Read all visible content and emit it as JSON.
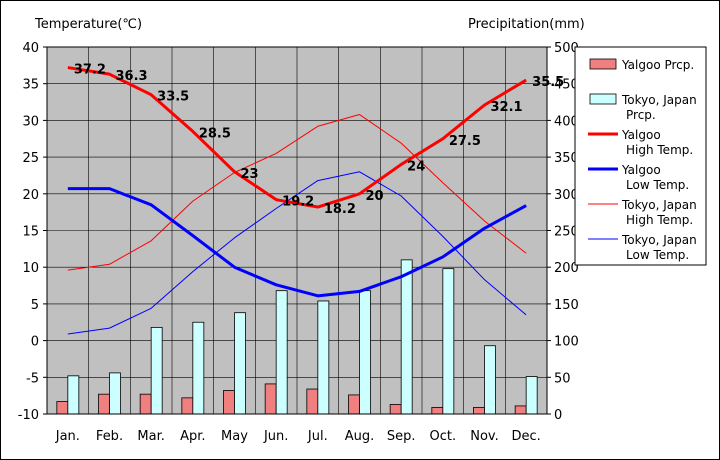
{
  "chart_data": {
    "type": "bar+line",
    "ylabel_left": "Temperature(℃)",
    "ylabel_right": "Precipitation(mm)",
    "categories": [
      "Jan.",
      "Feb.",
      "Mar.",
      "Apr.",
      "May",
      "Jun.",
      "Jul.",
      "Aug.",
      "Sep.",
      "Oct.",
      "Nov.",
      "Dec."
    ],
    "ylim_left": [
      -10,
      40
    ],
    "yticks_left": [
      40,
      35,
      30,
      25,
      20,
      15,
      10,
      5,
      0,
      -5,
      -10
    ],
    "ylim_right": [
      0,
      500
    ],
    "yticks_right": [
      500,
      450,
      400,
      350,
      300,
      250,
      200,
      150,
      100,
      50,
      0
    ],
    "grid": true,
    "plot_background": "#c0c0c0",
    "legend_position": "right",
    "bar_series": [
      {
        "name": "Yalgoo Prcp.",
        "color": "#f08080",
        "values": [
          17,
          27,
          27,
          22,
          32,
          41,
          34,
          26,
          13,
          9,
          9,
          11
        ]
      },
      {
        "name": "Tokyo, Japan Prcp.",
        "color": "#ccffff",
        "values": [
          52,
          56,
          118,
          125,
          138,
          168,
          154,
          168,
          210,
          198,
          93,
          51
        ]
      }
    ],
    "line_series": [
      {
        "name": "Yalgoo High Temp.",
        "color": "#ff0000",
        "width": 3,
        "values": [
          37.2,
          36.3,
          33.5,
          28.5,
          23,
          19.2,
          18.2,
          20,
          24,
          27.5,
          32.1,
          35.5
        ],
        "labels": [
          "37.2",
          "36.3",
          "33.5",
          "28.5",
          "23",
          "19.2",
          "18.2",
          "20",
          "24",
          "27.5",
          "32.1",
          "35.5"
        ]
      },
      {
        "name": "Yalgoo Low Temp.",
        "color": "#0000ff",
        "width": 3,
        "values": [
          20.7,
          20.7,
          18.5,
          14.3,
          10,
          7.6,
          6.1,
          6.7,
          8.7,
          11.4,
          15.3,
          18.4
        ]
      },
      {
        "name": "Tokyo, Japan High Temp.",
        "color": "#ff0000",
        "width": 1,
        "values": [
          9.6,
          10.4,
          13.6,
          19,
          22.9,
          25.5,
          29.2,
          30.8,
          26.9,
          21.5,
          16.3,
          11.9
        ]
      },
      {
        "name": "Tokyo, Japan Low Temp.",
        "color": "#0000ff",
        "width": 1,
        "values": [
          0.9,
          1.7,
          4.4,
          9.4,
          14,
          18,
          21.8,
          23,
          19.7,
          14.2,
          8.3,
          3.5
        ]
      }
    ],
    "legend": [
      {
        "kind": "bar",
        "color": "#f08080",
        "lines": [
          "Yalgoo Prcp."
        ]
      },
      {
        "kind": "bar",
        "color": "#ccffff",
        "lines": [
          "Tokyo, Japan",
          "Prcp."
        ]
      },
      {
        "kind": "line",
        "color": "#ff0000",
        "width": 3,
        "lines": [
          "Yalgoo",
          "High Temp."
        ]
      },
      {
        "kind": "line",
        "color": "#0000ff",
        "width": 3,
        "lines": [
          "Yalgoo",
          "Low Temp."
        ]
      },
      {
        "kind": "line",
        "color": "#ff0000",
        "width": 1,
        "lines": [
          "Tokyo, Japan",
          "High Temp."
        ]
      },
      {
        "kind": "line",
        "color": "#0000ff",
        "width": 1,
        "lines": [
          "Tokyo, Japan",
          "Low Temp."
        ]
      }
    ]
  }
}
